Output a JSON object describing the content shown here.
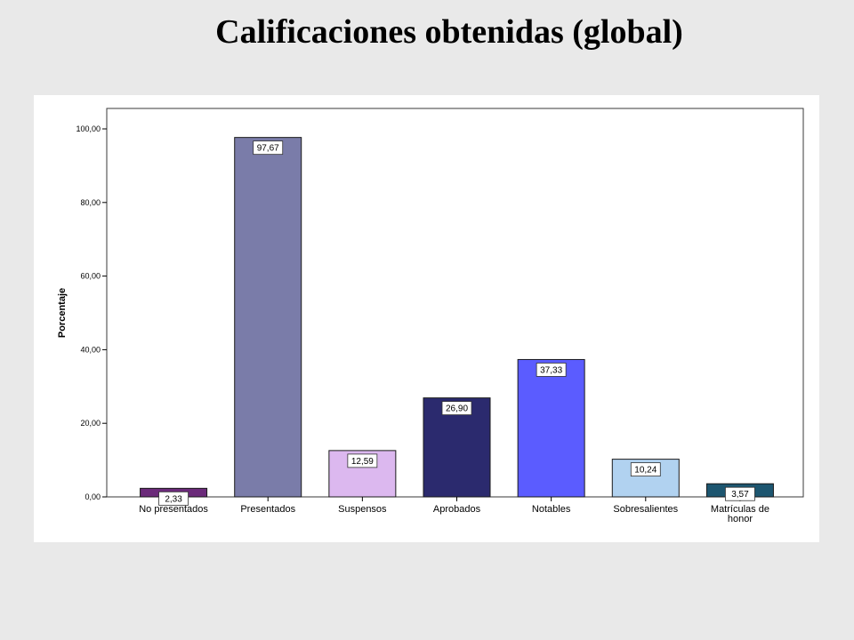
{
  "slide": {
    "title": "Calificaciones obtenidas (global)"
  },
  "chart_data": {
    "type": "bar",
    "title": "Calificaciones obtenidas (global)",
    "xlabel": "",
    "ylabel": "Porcentaje",
    "ylim": [
      0,
      100
    ],
    "yticks": [
      0,
      20,
      40,
      60,
      80,
      100
    ],
    "ytick_labels": [
      "0,00",
      "20,00",
      "40,00",
      "60,00",
      "80,00",
      "100,00"
    ],
    "categories": [
      [
        "No presentados"
      ],
      [
        "Presentados"
      ],
      [
        "Suspensos"
      ],
      [
        "Aprobados"
      ],
      [
        "Notables"
      ],
      [
        "Sobresalientes"
      ],
      [
        "Matrículas de",
        "honor"
      ]
    ],
    "values": [
      2.33,
      97.67,
      12.59,
      26.9,
      37.33,
      10.24,
      3.57
    ],
    "value_labels": [
      "2,33",
      "97,67",
      "12,59",
      "26,90",
      "37,33",
      "10,24",
      "3,57"
    ],
    "colors": [
      "#6b2a7a",
      "#7a7ca9",
      "#dcb8ef",
      "#2b2a6e",
      "#5b5cff",
      "#b1d2f0",
      "#1d5670"
    ],
    "grid": false,
    "legend": "none"
  }
}
